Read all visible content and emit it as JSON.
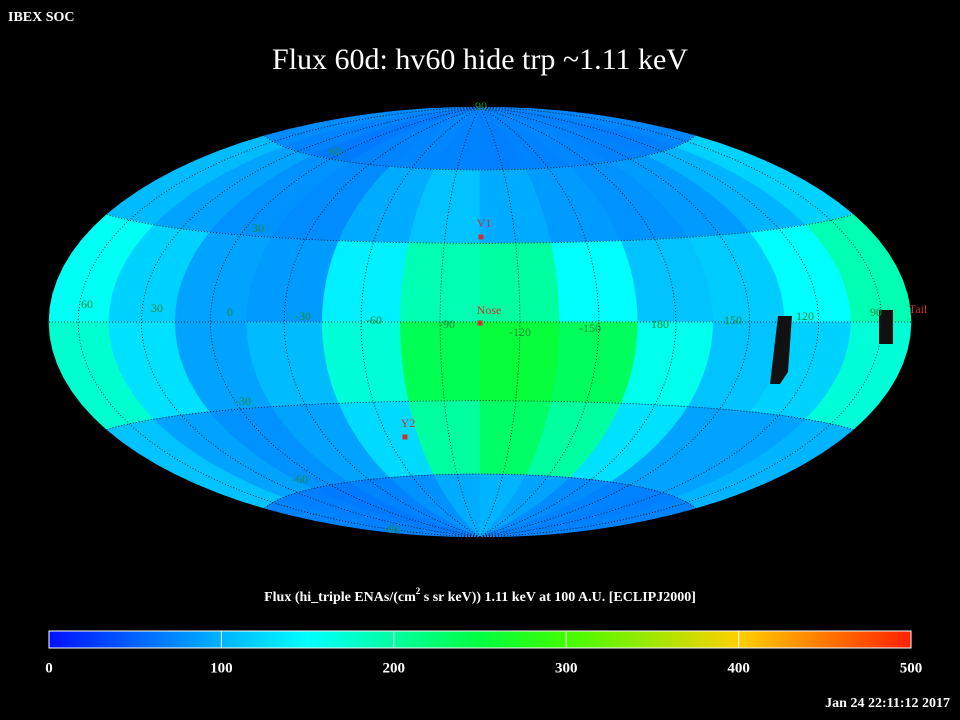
{
  "header": {
    "org": "IBEX SOC",
    "title": "Flux   60d: hv60 hide trp ~1.11 keV",
    "timestamp": "Jan 24 22:11:12 2017"
  },
  "map": {
    "lon_labels": [
      "60",
      "30",
      "0",
      "-30",
      "-60",
      "-90",
      "-120",
      "-150",
      "180",
      "150",
      "120",
      "90"
    ],
    "lat_labels": [
      "90",
      "60",
      "30",
      "-30",
      "-60",
      "-90"
    ],
    "markers": [
      {
        "label": "V1"
      },
      {
        "label": "Nose"
      },
      {
        "label": "Y2"
      },
      {
        "label": "Tail"
      }
    ],
    "flux_grid": {
      "values": [
        [
          75,
          70,
          65,
          70,
          72,
          70,
          68,
          70,
          72,
          70,
          68,
          72
        ],
        [
          105,
          90,
          80,
          75,
          95,
          110,
          95,
          85,
          80,
          85,
          100,
          120
        ],
        [
          155,
          120,
          90,
          85,
          140,
          190,
          200,
          150,
          110,
          115,
          150,
          190
        ],
        [
          175,
          130,
          90,
          105,
          170,
          240,
          255,
          235,
          160,
          110,
          120,
          170
        ],
        [
          110,
          90,
          80,
          90,
          125,
          200,
          230,
          200,
          130,
          90,
          90,
          100
        ],
        [
          70,
          68,
          65,
          70,
          80,
          95,
          100,
          90,
          75,
          70,
          68,
          70
        ]
      ]
    }
  },
  "colorbar": {
    "label_start": "Flux (hi_triple ENAs/(cm",
    "label_sup": "2",
    "label_end": " s sr keV))  1.11 keV at 100 A.U. [ECLIPJ2000]",
    "range": [
      0,
      500
    ],
    "ticks": [
      0,
      100,
      200,
      300,
      400,
      500
    ]
  }
}
